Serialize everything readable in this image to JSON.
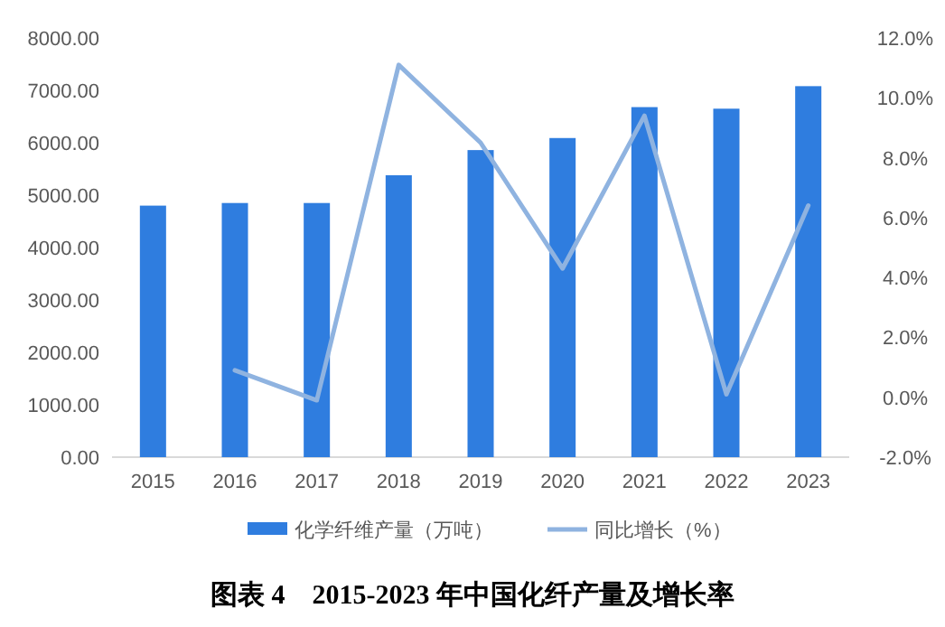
{
  "chart_data": {
    "type": "bar",
    "title": "图表 4　2015-2023 年中国化纤产量及增长率",
    "categories": [
      "2015",
      "2016",
      "2017",
      "2018",
      "2019",
      "2020",
      "2021",
      "2022",
      "2023"
    ],
    "series": [
      {
        "name": "化学纤维产量（万吨）",
        "color": "#2f7ddf",
        "values": [
          4800,
          4850,
          4850,
          5380,
          5860,
          6090,
          6680,
          6650,
          7080
        ]
      },
      {
        "name": "同比增长（%）",
        "type": "line",
        "axis": "y2",
        "color": "#8fb3e0",
        "values": [
          null,
          0.9,
          -0.1,
          11.1,
          8.5,
          4.3,
          9.4,
          0.1,
          6.4
        ]
      }
    ],
    "ylim": [
      0,
      8000
    ],
    "yticks": [
      {
        "value": 0,
        "label": "0.00"
      },
      {
        "value": 1000,
        "label": "1000.00"
      },
      {
        "value": 2000,
        "label": "2000.00"
      },
      {
        "value": 3000,
        "label": "3000.00"
      },
      {
        "value": 4000,
        "label": "4000.00"
      },
      {
        "value": 5000,
        "label": "5000.00"
      },
      {
        "value": 6000,
        "label": "6000.00"
      },
      {
        "value": 7000,
        "label": "7000.00"
      },
      {
        "value": 8000,
        "label": "8000.00"
      }
    ],
    "y2lim": [
      -2,
      12
    ],
    "y2ticks": [
      {
        "value": -2,
        "label": "-2.0%"
      },
      {
        "value": 0,
        "label": "0.0%"
      },
      {
        "value": 2,
        "label": "2.0%"
      },
      {
        "value": 4,
        "label": "4.0%"
      },
      {
        "value": 6,
        "label": "6.0%"
      },
      {
        "value": 8,
        "label": "8.0%"
      },
      {
        "value": 10,
        "label": "10.0%"
      },
      {
        "value": 12,
        "label": "12.0%"
      }
    ],
    "legend": "bottom",
    "marker": "none",
    "line_style": "solid"
  }
}
